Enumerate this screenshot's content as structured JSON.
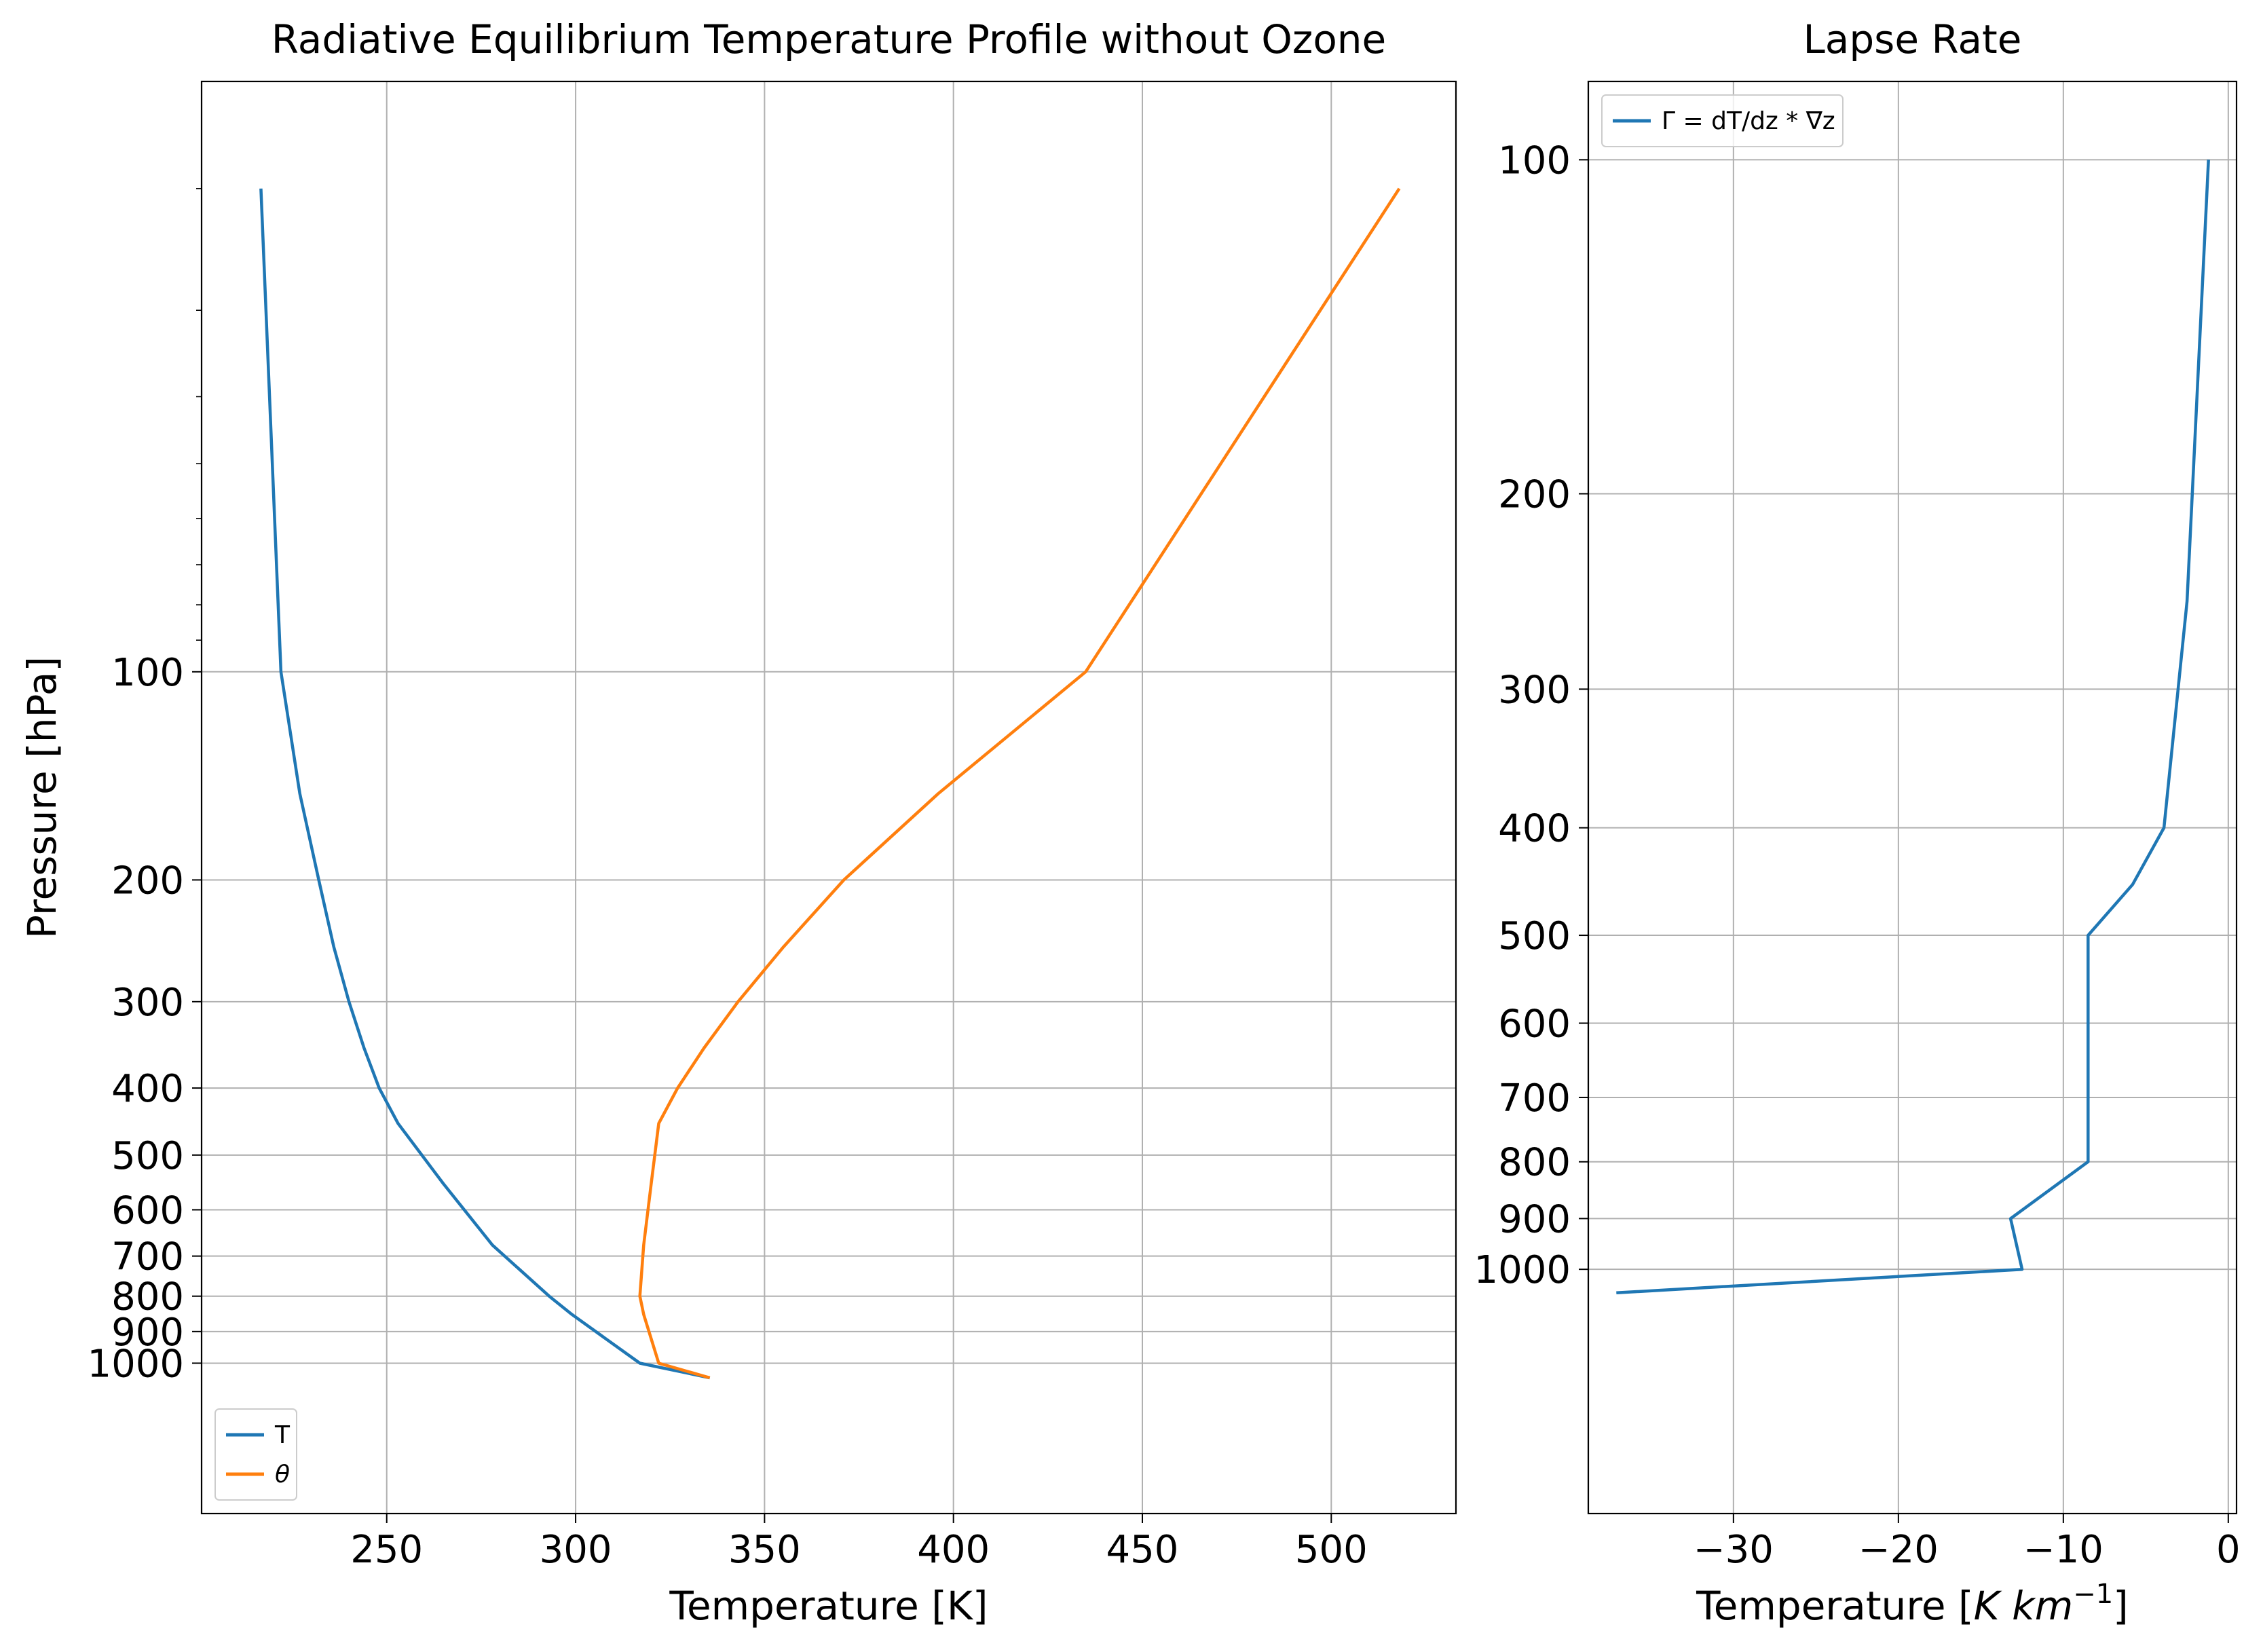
{
  "chart_data": [
    {
      "type": "line",
      "title": "Radiative Equilibrium Temperature Profile without Ozone",
      "xlabel": "Temperature [K]",
      "ylabel": "Pressure [hPa]",
      "yscale": "log",
      "yinverted": true,
      "xlim": [
        201,
        533
      ],
      "ylim": [
        1650,
        14
      ],
      "xticks": [
        250,
        300,
        350,
        400,
        450,
        500
      ],
      "xtick_labels": [
        "250",
        "300",
        "350",
        "400",
        "450",
        "500"
      ],
      "yticks": [
        100,
        200,
        300,
        400,
        500,
        600,
        700,
        800,
        900,
        1000
      ],
      "ytick_labels": [
        "100",
        "200",
        "300",
        "400",
        "500",
        "600",
        "700",
        "800",
        "900",
        "1000"
      ],
      "grid": true,
      "legend_position": "bottom-left",
      "series": [
        {
          "name": "T",
          "color": "#1f77b4",
          "points": [
            [
              216.7,
              20
            ],
            [
              222,
              100
            ],
            [
              227,
              150
            ],
            [
              232,
              200
            ],
            [
              236,
              250
            ],
            [
              240,
              300
            ],
            [
              244,
              350
            ],
            [
              248,
              400
            ],
            [
              253,
              450
            ],
            [
              265,
              550
            ],
            [
              278,
              675
            ],
            [
              293,
              800
            ],
            [
              299,
              850
            ],
            [
              317,
              1000
            ],
            [
              335.5,
              1050
            ]
          ]
        },
        {
          "name": "θ",
          "color": "#ff7f0e",
          "points": [
            [
              518,
              20
            ],
            [
              435,
              100
            ],
            [
              396,
              150
            ],
            [
              371,
              200
            ],
            [
              355,
              250
            ],
            [
              343,
              300
            ],
            [
              334,
              350
            ],
            [
              327,
              400
            ],
            [
              322,
              450
            ],
            [
              320,
              550
            ],
            [
              318,
              675
            ],
            [
              317,
              800
            ],
            [
              318,
              850
            ],
            [
              322,
              1000
            ],
            [
              335.5,
              1050
            ]
          ]
        }
      ]
    },
    {
      "type": "line",
      "title": "Lapse Rate",
      "xlabel": "Temperature [K km⁻¹]",
      "xlabel_plain": "Temperature [",
      "xlabel_unit": "K km",
      "xlabel_sup": "−1",
      "xlabel_close": "]",
      "ylabel": "",
      "yscale": "log",
      "yinverted": true,
      "xlim": [
        -38.8,
        0.5
      ],
      "ylim": [
        1660,
        85
      ],
      "xticks": [
        -30,
        -20,
        -10,
        0
      ],
      "xtick_labels": [
        "−30",
        "−20",
        "−10",
        "0"
      ],
      "yticks": [
        100,
        200,
        300,
        400,
        500,
        600,
        700,
        800,
        900,
        1000
      ],
      "ytick_labels": [
        "100",
        "200",
        "300",
        "400",
        "500",
        "600",
        "700",
        "800",
        "900",
        "1000"
      ],
      "grid": true,
      "legend_position": "top-left",
      "series": [
        {
          "name": "Γ = dT/dz * ∇z",
          "color": "#1f77b4",
          "points": [
            [
              -1.2,
              100
            ],
            [
              -2.5,
              250
            ],
            [
              -3.9,
              400
            ],
            [
              -5.8,
              450
            ],
            [
              -8.5,
              500
            ],
            [
              -8.5,
              800
            ],
            [
              -13.2,
              900
            ],
            [
              -12.5,
              1000
            ],
            [
              -37.1,
              1050
            ]
          ]
        }
      ]
    }
  ]
}
